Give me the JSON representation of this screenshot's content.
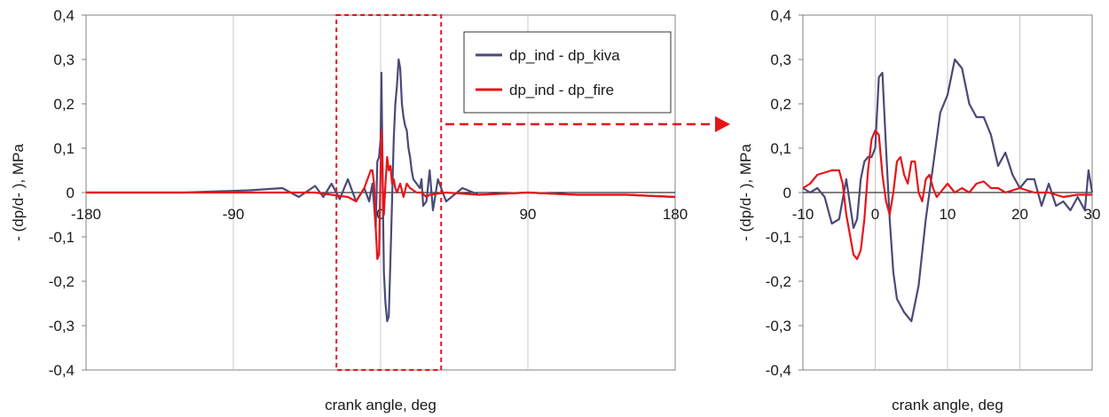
{
  "chart_data": [
    {
      "type": "line",
      "xlabel": "crank angle, deg",
      "ylabel": "- (dp/d- ), MPa",
      "xlim": [
        -180,
        180
      ],
      "ylim": [
        -0.4,
        0.4
      ],
      "x_ticks": [
        "-180",
        "-90",
        "0",
        "90",
        "180"
      ],
      "y_ticks": [
        "0,4",
        "0,3",
        "0,2",
        "0,1",
        "0",
        "-0,1",
        "-0,2",
        "-0,3",
        "-0,4"
      ],
      "grid": "vertical",
      "legend_position": "top-right",
      "legend": [
        "dp_ind - dp_kiva",
        "dp_ind - dp_fire"
      ],
      "zoom_box_x": [
        -27,
        37
      ],
      "series": [
        {
          "name": "dp_ind - dp_kiva",
          "color": "#4a4a78",
          "x": [
            -180,
            -120,
            -80,
            -60,
            -50,
            -40,
            -35,
            -30,
            -25,
            -20,
            -15,
            -10,
            -7,
            -5,
            -3,
            -2,
            -1,
            0,
            0.5,
            1,
            1.5,
            2,
            3,
            4,
            5,
            6,
            7,
            8,
            9,
            10,
            11,
            12,
            13,
            14,
            15,
            16,
            17,
            18,
            19,
            20,
            22,
            24,
            25,
            26,
            28,
            30,
            32,
            35,
            40,
            50,
            60,
            90,
            120,
            150,
            180
          ],
          "y": [
            0,
            0,
            0.005,
            0.01,
            -0.01,
            0.015,
            -0.01,
            0.02,
            -0.015,
            0.03,
            -0.02,
            0.01,
            -0.02,
            0.02,
            -0.08,
            0.07,
            0.08,
            0.12,
            0.27,
            0.12,
            -0.05,
            -0.18,
            -0.25,
            -0.29,
            -0.28,
            -0.15,
            -0.02,
            0.12,
            0.2,
            0.24,
            0.3,
            0.28,
            0.2,
            0.17,
            0.15,
            0.14,
            0.1,
            0.08,
            0.05,
            0.03,
            0.02,
            0.01,
            0.03,
            -0.03,
            -0.02,
            0.05,
            -0.04,
            0.03,
            -0.02,
            0.01,
            -0.005,
            0,
            -0.005,
            -0.005,
            -0.01
          ]
        },
        {
          "name": "dp_ind - dp_fire",
          "color": "#e8141a",
          "x": [
            -180,
            -120,
            -80,
            -60,
            -40,
            -30,
            -20,
            -15,
            -10,
            -8,
            -7,
            -6,
            -5,
            -4,
            -3,
            -2,
            -1,
            0,
            0.5,
            1,
            1.5,
            2,
            3,
            4,
            5,
            6,
            7,
            8,
            9,
            10,
            12,
            14,
            16,
            18,
            20,
            22,
            25,
            28,
            30,
            40,
            60,
            90,
            120,
            150,
            180
          ],
          "y": [
            0,
            0,
            0,
            0,
            0,
            -0.005,
            -0.01,
            -0.02,
            0.01,
            0.03,
            0.04,
            0.05,
            0.05,
            0.02,
            -0.08,
            -0.15,
            -0.14,
            0.05,
            0.14,
            0.1,
            -0.02,
            -0.05,
            0.02,
            0.08,
            0.05,
            0.06,
            0.02,
            0.03,
            0.01,
            0,
            0.02,
            -0.01,
            0.02,
            0.01,
            0.005,
            0,
            0,
            -0.01,
            -0.005,
            0,
            -0.005,
            0,
            -0.005,
            -0.005,
            -0.01
          ]
        }
      ]
    },
    {
      "type": "line",
      "xlabel": "crank angle, deg",
      "ylabel": "- (dp/d- ), MPa",
      "xlim": [
        -10,
        30
      ],
      "ylim": [
        -0.4,
        0.4
      ],
      "x_ticks": [
        "-10",
        "0",
        "10",
        "20",
        "30"
      ],
      "y_ticks": [
        "0,4",
        "0,3",
        "0,2",
        "0,1",
        "0",
        "-0,1",
        "-0,2",
        "-0,3",
        "-0,4"
      ],
      "grid": "vertical",
      "series": [
        {
          "name": "dp_ind - dp_kiva",
          "color": "#4a4a78",
          "x": [
            -10,
            -9,
            -8,
            -7,
            -6,
            -5,
            -4,
            -3,
            -2.5,
            -2,
            -1.5,
            -1,
            -0.5,
            0,
            0.5,
            1,
            1.5,
            2,
            2.5,
            3,
            4,
            5,
            6,
            7,
            8,
            9,
            10,
            11,
            12,
            13,
            14,
            15,
            16,
            17,
            18,
            19,
            20,
            21,
            22,
            23,
            24,
            25,
            26,
            27,
            28,
            29,
            29.5,
            30
          ],
          "y": [
            0.01,
            0,
            0.01,
            -0.01,
            -0.07,
            -0.06,
            0.03,
            -0.08,
            -0.06,
            0.03,
            0.07,
            0.08,
            0.08,
            0.1,
            0.26,
            0.27,
            0.1,
            -0.06,
            -0.18,
            -0.24,
            -0.27,
            -0.29,
            -0.21,
            -0.06,
            0.06,
            0.18,
            0.22,
            0.3,
            0.28,
            0.2,
            0.17,
            0.17,
            0.13,
            0.06,
            0.09,
            0.04,
            0.01,
            0.03,
            0.03,
            -0.03,
            0.02,
            -0.03,
            -0.02,
            -0.04,
            -0.01,
            -0.04,
            0.05,
            0.0
          ]
        },
        {
          "name": "dp_ind - dp_fire",
          "color": "#e8141a",
          "x": [
            -10,
            -9,
            -8,
            -7,
            -6,
            -5,
            -4.5,
            -4,
            -3,
            -2.5,
            -2,
            -1.5,
            -1,
            -0.5,
            0,
            0.5,
            1,
            1.5,
            2,
            2.5,
            3,
            3.5,
            4,
            4.5,
            5,
            5.5,
            6,
            6.5,
            7,
            7.5,
            8,
            8.5,
            9,
            10,
            11,
            12,
            13,
            14,
            15,
            16,
            17,
            18,
            20,
            22,
            24,
            26,
            28,
            30
          ],
          "y": [
            0.01,
            0.02,
            0.04,
            0.045,
            0.05,
            0.05,
            0.02,
            -0.05,
            -0.14,
            -0.15,
            -0.13,
            -0.06,
            0.05,
            0.12,
            0.14,
            0.13,
            0.04,
            -0.02,
            -0.05,
            0.0,
            0.07,
            0.08,
            0.04,
            0.02,
            0.07,
            0.07,
            0.0,
            -0.02,
            0.03,
            0.04,
            0.01,
            -0.01,
            0.0,
            0.02,
            0.0,
            0.01,
            0.0,
            0.02,
            0.025,
            0.01,
            0.01,
            0.0,
            0.01,
            0.0,
            0.0,
            -0.01,
            -0.005,
            -0.005
          ]
        }
      ]
    }
  ],
  "colors": {
    "kiva": "#4a4a78",
    "fire": "#e8141a",
    "grid": "#c8c8c8",
    "zoom": "#e8141a"
  }
}
